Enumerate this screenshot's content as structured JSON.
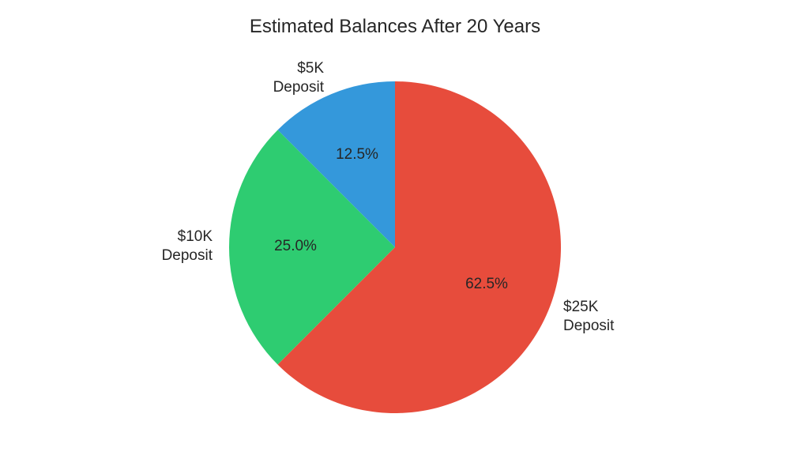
{
  "chart_data": {
    "type": "pie",
    "title": "Estimated Balances After 20 Years",
    "categories": [
      "$5K Deposit",
      "$10K Deposit",
      "$25K Deposit"
    ],
    "values": [
      12.5,
      25.0,
      62.5
    ],
    "labels": [
      {
        "line1": "$5K",
        "line2": "Deposit",
        "pct": "12.5%"
      },
      {
        "line1": "$10K",
        "line2": "Deposit",
        "pct": "25.0%"
      },
      {
        "line1": "$25K",
        "line2": "Deposit",
        "pct": "62.5%"
      }
    ],
    "colors": [
      "#3498db",
      "#2ecc71",
      "#e74c3c"
    ],
    "start_angle": 90,
    "direction": "counterclockwise"
  }
}
